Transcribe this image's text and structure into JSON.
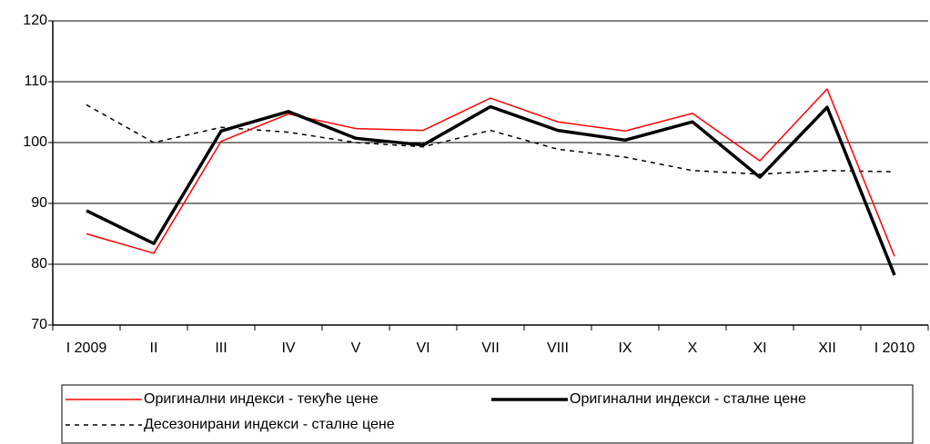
{
  "chart_data": {
    "type": "line",
    "categories": [
      "I 2009",
      "II",
      "III",
      "IV",
      "V",
      "VI",
      "VII",
      "VIII",
      "IX",
      "X",
      "XI",
      "XII",
      "I 2010"
    ],
    "series": [
      {
        "name": "Оригинални индекси - текуће цене",
        "color": "#ff0000",
        "style": "thin",
        "values": [
          85,
          81.8,
          100.2,
          104.7,
          102.3,
          102,
          107.3,
          103.4,
          101.9,
          104.8,
          97,
          108.8,
          81.3
        ]
      },
      {
        "name": "Оригинални индекси - сталне цене",
        "color": "#000000",
        "style": "thick",
        "values": [
          88.8,
          83.4,
          101.9,
          105.1,
          100.7,
          99.6,
          105.9,
          102,
          100.4,
          103.4,
          94.3,
          105.8,
          78.2
        ]
      },
      {
        "name": "Десезонирани индекси - сталне цене",
        "color": "#000000",
        "style": "dashed",
        "values": [
          106.2,
          100,
          102.5,
          101.7,
          100,
          99.3,
          102,
          98.9,
          97.6,
          95.4,
          94.8,
          95.4,
          95.2
        ]
      }
    ],
    "ylim": [
      70,
      120
    ],
    "yticks": [
      70,
      80,
      90,
      100,
      110,
      120
    ],
    "grid": true
  }
}
